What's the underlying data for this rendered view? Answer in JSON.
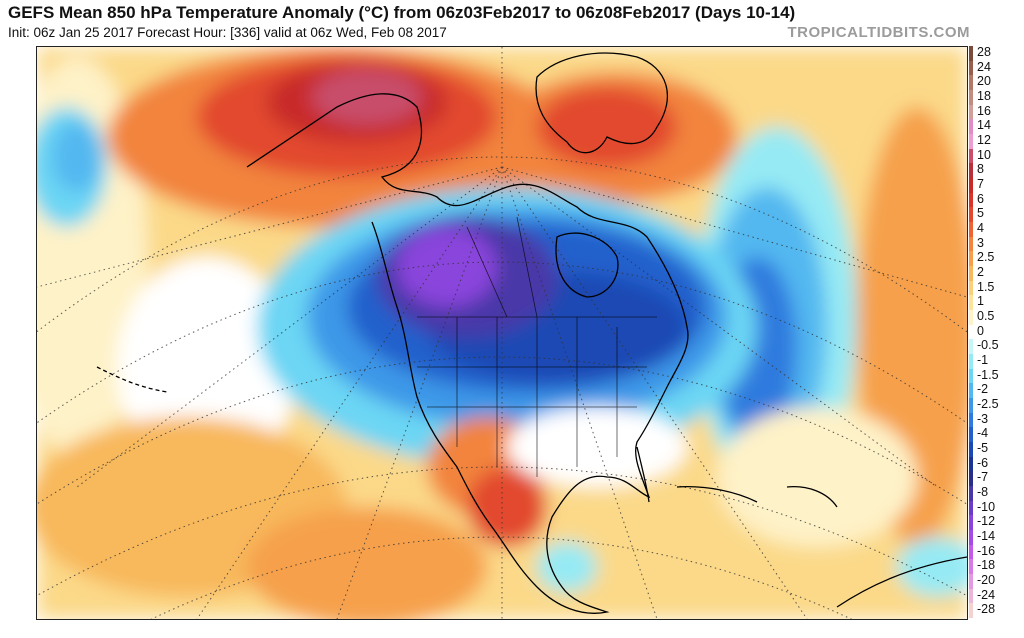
{
  "header": {
    "title": "GEFS Mean 850 hPa Temperature Anomaly (°C) from 06z03Feb2017 to 06z08Feb2017 (Days 10-14)",
    "subtitle": "Init: 06z Jan 25 2017   Forecast Hour: [336]   valid at 06z Wed, Feb 08 2017",
    "brand": "TROPICALTIDBITS.COM"
  },
  "map": {
    "region": "North America",
    "variable": "850 hPa temperature anomaly",
    "units": "°C"
  },
  "colorbar": {
    "levels": [
      {
        "label": "28",
        "color": "#7a4a3a"
      },
      {
        "label": "24",
        "color": "#9a5e4c"
      },
      {
        "label": "20",
        "color": "#b27868"
      },
      {
        "label": "18",
        "color": "#c28c80"
      },
      {
        "label": "16",
        "color": "#d2a09a"
      },
      {
        "label": "14",
        "color": "#e28cc6"
      },
      {
        "label": "12",
        "color": "#ea9ed2"
      },
      {
        "label": "10",
        "color": "#c84e6a"
      },
      {
        "label": "8",
        "color": "#b8303c"
      },
      {
        "label": "7",
        "color": "#c82a2a"
      },
      {
        "label": "6",
        "color": "#d8342a"
      },
      {
        "label": "5",
        "color": "#e2482e"
      },
      {
        "label": "4",
        "color": "#ec6434"
      },
      {
        "label": "3",
        "color": "#f2843e"
      },
      {
        "label": "2.5",
        "color": "#f6a04c"
      },
      {
        "label": "2",
        "color": "#f8b85c"
      },
      {
        "label": "1.5",
        "color": "#fad07a"
      },
      {
        "label": "1",
        "color": "#fce49c"
      },
      {
        "label": "0.5",
        "color": "#fef2c8"
      },
      {
        "label": "0",
        "color": "#ffffff"
      },
      {
        "label": "-0.5",
        "color": "#c8f6f8"
      },
      {
        "label": "-1",
        "color": "#96eaf4"
      },
      {
        "label": "-1.5",
        "color": "#6cd6f4"
      },
      {
        "label": "-2",
        "color": "#52b8f0"
      },
      {
        "label": "-2.5",
        "color": "#3e98e8"
      },
      {
        "label": "-3",
        "color": "#2e7ade"
      },
      {
        "label": "-4",
        "color": "#2460cc"
      },
      {
        "label": "-5",
        "color": "#1c48b4"
      },
      {
        "label": "-6",
        "color": "#1a3494"
      },
      {
        "label": "-7",
        "color": "#2a2e86"
      },
      {
        "label": "-8",
        "color": "#4a38a8"
      },
      {
        "label": "-10",
        "color": "#6c3cc8"
      },
      {
        "label": "-12",
        "color": "#8a44dc"
      },
      {
        "label": "-14",
        "color": "#a64ae6"
      },
      {
        "label": "-16",
        "color": "#c45ae8"
      },
      {
        "label": "-18",
        "color": "#d87ae6"
      },
      {
        "label": "-20",
        "color": "#e49ae0"
      },
      {
        "label": "-24",
        "color": "#ecb6d8"
      },
      {
        "label": "-28",
        "color": "#f4d2d0"
      }
    ]
  }
}
